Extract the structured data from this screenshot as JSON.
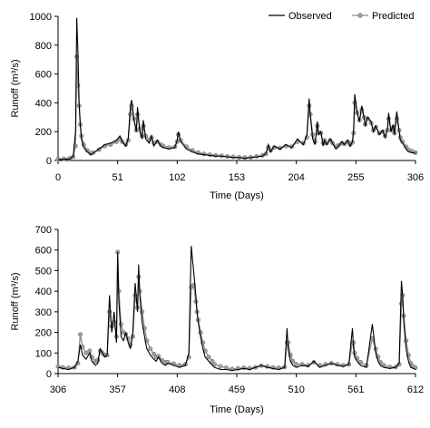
{
  "chart_data": [
    {
      "type": "line",
      "xlabel": "Time (Days)",
      "ylabel": "Runoff (m³/s)",
      "xlim": [
        0,
        306
      ],
      "ylim": [
        0,
        1000
      ],
      "xticks": [
        0,
        51,
        102,
        153,
        204,
        255,
        306
      ],
      "yticks": [
        0,
        200,
        400,
        600,
        800,
        1000
      ],
      "legend": {
        "position": "top-right",
        "entries": [
          "Observed",
          "Predicted"
        ]
      },
      "colors": {
        "Observed": "#000000",
        "Predicted": "#8c8c8c"
      },
      "series": [
        {
          "name": "Observed",
          "x": [
            0,
            5,
            10,
            13,
            15,
            16,
            17,
            18,
            19,
            20,
            22,
            25,
            28,
            30,
            35,
            40,
            45,
            50,
            53,
            55,
            58,
            60,
            62,
            63,
            65,
            67,
            68,
            70,
            72,
            73,
            75,
            78,
            80,
            82,
            85,
            88,
            90,
            95,
            100,
            102,
            103,
            105,
            110,
            115,
            120,
            125,
            130,
            135,
            140,
            145,
            150,
            155,
            160,
            165,
            170,
            175,
            178,
            180,
            182,
            185,
            190,
            195,
            200,
            205,
            210,
            213,
            215,
            216,
            218,
            220,
            222,
            223,
            225,
            227,
            228,
            230,
            233,
            235,
            238,
            240,
            243,
            245,
            248,
            250,
            252,
            253,
            254,
            256,
            258,
            260,
            262,
            263,
            265,
            268,
            270,
            272,
            275,
            278,
            280,
            282,
            283,
            285,
            287,
            288,
            290,
            292,
            293,
            295,
            298,
            300,
            303,
            306
          ],
          "y": [
            5,
            8,
            10,
            30,
            200,
            990,
            750,
            400,
            250,
            150,
            90,
            60,
            40,
            50,
            80,
            110,
            120,
            140,
            170,
            130,
            100,
            150,
            380,
            420,
            280,
            200,
            370,
            200,
            150,
            280,
            150,
            120,
            170,
            100,
            140,
            100,
            90,
            80,
            90,
            140,
            200,
            130,
            80,
            60,
            45,
            40,
            35,
            30,
            30,
            25,
            20,
            20,
            15,
            20,
            25,
            30,
            50,
            110,
            60,
            100,
            80,
            110,
            90,
            150,
            110,
            180,
            430,
            310,
            150,
            110,
            270,
            180,
            200,
            100,
            140,
            110,
            150,
            120,
            80,
            100,
            130,
            110,
            140,
            100,
            130,
            210,
            460,
            340,
            270,
            380,
            300,
            240,
            300,
            270,
            200,
            240,
            180,
            210,
            160,
            220,
            330,
            200,
            250,
            180,
            340,
            200,
            140,
            120,
            80,
            60,
            55,
            50
          ]
        },
        {
          "name": "Predicted",
          "x": [
            0,
            5,
            10,
            13,
            15,
            16,
            17,
            18,
            19,
            20,
            22,
            25,
            28,
            30,
            35,
            40,
            45,
            50,
            53,
            55,
            58,
            60,
            62,
            63,
            65,
            67,
            68,
            70,
            72,
            73,
            75,
            78,
            80,
            82,
            85,
            88,
            90,
            95,
            100,
            102,
            103,
            105,
            110,
            115,
            120,
            125,
            130,
            135,
            140,
            145,
            150,
            155,
            160,
            165,
            170,
            175,
            178,
            180,
            182,
            185,
            190,
            195,
            200,
            205,
            210,
            213,
            215,
            216,
            218,
            220,
            222,
            223,
            225,
            227,
            228,
            230,
            233,
            235,
            238,
            240,
            243,
            245,
            248,
            250,
            252,
            253,
            254,
            256,
            258,
            260,
            262,
            263,
            265,
            268,
            270,
            272,
            275,
            278,
            280,
            282,
            283,
            285,
            287,
            288,
            290,
            292,
            293,
            295,
            298,
            300,
            303,
            306
          ],
          "y": [
            10,
            12,
            15,
            25,
            100,
            720,
            520,
            380,
            250,
            170,
            110,
            70,
            50,
            55,
            75,
            100,
            110,
            130,
            150,
            130,
            110,
            140,
            320,
            380,
            290,
            210,
            320,
            220,
            170,
            240,
            170,
            140,
            160,
            120,
            130,
            110,
            100,
            90,
            95,
            130,
            180,
            140,
            95,
            70,
            55,
            45,
            40,
            35,
            32,
            28,
            25,
            22,
            20,
            22,
            28,
            35,
            45,
            90,
            70,
            90,
            85,
            100,
            95,
            130,
            120,
            160,
            380,
            320,
            180,
            130,
            240,
            190,
            190,
            120,
            140,
            120,
            140,
            120,
            95,
            105,
            120,
            115,
            130,
            110,
            125,
            190,
            400,
            330,
            280,
            350,
            300,
            250,
            290,
            260,
            210,
            230,
            190,
            200,
            170,
            210,
            290,
            210,
            230,
            190,
            290,
            210,
            160,
            130,
            95,
            75,
            65,
            55
          ]
        }
      ]
    },
    {
      "type": "line",
      "xlabel": "Time (Days)",
      "ylabel": "Runoff (m³/s)",
      "xlim": [
        306,
        612
      ],
      "ylim": [
        0,
        700
      ],
      "xticks": [
        306,
        357,
        408,
        459,
        510,
        561,
        612
      ],
      "yticks": [
        0,
        100,
        200,
        300,
        400,
        500,
        600,
        700
      ],
      "colors": {
        "Observed": "#000000",
        "Predicted": "#8c8c8c"
      },
      "series": [
        {
          "name": "Observed",
          "x": [
            306,
            310,
            315,
            320,
            323,
            325,
            327,
            330,
            333,
            335,
            338,
            340,
            342,
            344,
            346,
            348,
            350,
            352,
            354,
            356,
            357,
            358,
            360,
            362,
            364,
            366,
            368,
            370,
            372,
            374,
            375,
            376,
            378,
            380,
            382,
            385,
            388,
            390,
            392,
            395,
            398,
            400,
            405,
            410,
            415,
            418,
            420,
            422,
            424,
            425,
            426,
            428,
            430,
            432,
            435,
            438,
            440,
            445,
            450,
            455,
            460,
            465,
            470,
            475,
            480,
            485,
            490,
            495,
            500,
            502,
            503,
            505,
            507,
            510,
            515,
            520,
            525,
            530,
            535,
            540,
            545,
            550,
            555,
            558,
            559,
            560,
            562,
            565,
            570,
            575,
            578,
            580,
            582,
            585,
            590,
            595,
            598,
            600,
            601,
            602,
            604,
            606,
            608,
            610,
            612
          ],
          "y": [
            30,
            25,
            20,
            30,
            60,
            140,
            90,
            70,
            100,
            60,
            40,
            50,
            120,
            100,
            80,
            90,
            380,
            200,
            300,
            150,
            590,
            350,
            180,
            160,
            200,
            150,
            120,
            200,
            440,
            300,
            530,
            380,
            250,
            180,
            120,
            90,
            70,
            60,
            80,
            50,
            40,
            50,
            40,
            30,
            40,
            100,
            620,
            500,
            380,
            300,
            250,
            180,
            120,
            80,
            60,
            40,
            30,
            20,
            20,
            15,
            20,
            25,
            20,
            30,
            40,
            30,
            25,
            20,
            30,
            220,
            120,
            60,
            40,
            30,
            40,
            35,
            60,
            30,
            40,
            50,
            40,
            35,
            45,
            220,
            120,
            80,
            60,
            40,
            30,
            240,
            100,
            60,
            40,
            30,
            25,
            30,
            50,
            450,
            380,
            250,
            120,
            60,
            30,
            25,
            20
          ]
        },
        {
          "name": "Predicted",
          "x": [
            306,
            310,
            315,
            320,
            323,
            325,
            327,
            330,
            333,
            335,
            338,
            340,
            342,
            344,
            346,
            348,
            350,
            352,
            354,
            356,
            357,
            358,
            360,
            362,
            364,
            366,
            368,
            370,
            372,
            374,
            375,
            376,
            378,
            380,
            382,
            385,
            388,
            390,
            392,
            395,
            398,
            400,
            405,
            410,
            415,
            418,
            420,
            422,
            424,
            425,
            426,
            428,
            430,
            432,
            435,
            438,
            440,
            445,
            450,
            455,
            460,
            465,
            470,
            475,
            480,
            485,
            490,
            495,
            500,
            502,
            503,
            505,
            507,
            510,
            515,
            520,
            525,
            530,
            535,
            540,
            545,
            550,
            555,
            558,
            559,
            560,
            562,
            565,
            570,
            575,
            578,
            580,
            582,
            585,
            590,
            595,
            598,
            600,
            601,
            602,
            604,
            606,
            608,
            610,
            612
          ],
          "y": [
            35,
            30,
            28,
            30,
            50,
            190,
            130,
            100,
            110,
            80,
            60,
            65,
            110,
            100,
            90,
            90,
            300,
            230,
            250,
            180,
            590,
            400,
            240,
            200,
            190,
            170,
            140,
            180,
            380,
            320,
            470,
            400,
            300,
            220,
            160,
            120,
            95,
            80,
            85,
            65,
            55,
            55,
            48,
            40,
            45,
            80,
            420,
            430,
            350,
            300,
            260,
            200,
            150,
            110,
            80,
            60,
            45,
            35,
            28,
            22,
            25,
            28,
            26,
            30,
            38,
            35,
            30,
            28,
            32,
            150,
            150,
            90,
            60,
            45,
            45,
            40,
            55,
            40,
            45,
            50,
            45,
            40,
            45,
            150,
            150,
            100,
            75,
            55,
            40,
            170,
            120,
            80,
            55,
            40,
            32,
            32,
            45,
            340,
            380,
            280,
            160,
            90,
            50,
            35,
            28
          ]
        }
      ]
    }
  ]
}
